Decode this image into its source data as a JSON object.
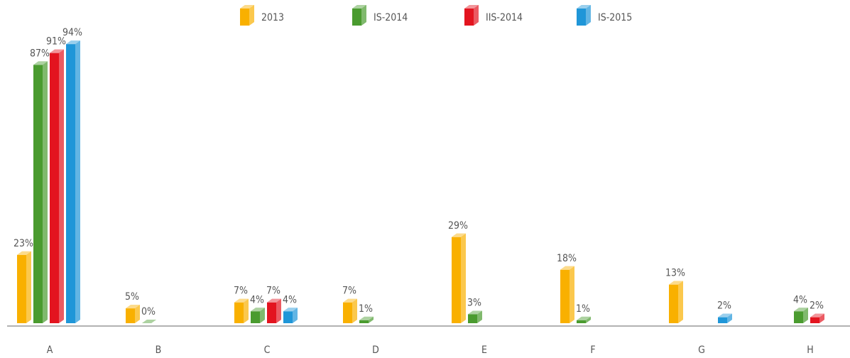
{
  "chart_data": {
    "type": "bar",
    "categories": [
      "A",
      "B",
      "C",
      "D",
      "E",
      "F",
      "G",
      "H"
    ],
    "series": [
      {
        "name": "2013",
        "color": "#f9b000",
        "values": [
          23,
          5,
          7,
          7,
          29,
          18,
          13,
          null
        ],
        "value_labels": [
          "23%",
          "5%",
          "7%",
          "7%",
          "29%",
          "18%",
          "13%",
          null
        ]
      },
      {
        "name": "IS-2014",
        "color": "#4a9b2f",
        "values": [
          87,
          0,
          4,
          1,
          3,
          1,
          null,
          4
        ],
        "value_labels": [
          "87%",
          "0%",
          "4%",
          "1%",
          "3%",
          "1%",
          null,
          "4%"
        ]
      },
      {
        "name": "IIS-2014",
        "color": "#e3141f",
        "values": [
          91,
          null,
          7,
          null,
          null,
          null,
          null,
          2
        ],
        "value_labels": [
          "91%",
          null,
          "7%",
          null,
          null,
          null,
          null,
          "2%"
        ]
      },
      {
        "name": "IS-2015",
        "color": "#1f96d8",
        "values": [
          94,
          null,
          4,
          null,
          null,
          null,
          2,
          null
        ],
        "value_labels": [
          "94%",
          null,
          "4%",
          null,
          null,
          null,
          "2%",
          null
        ]
      }
    ],
    "ylim": [
      0,
      100
    ]
  }
}
